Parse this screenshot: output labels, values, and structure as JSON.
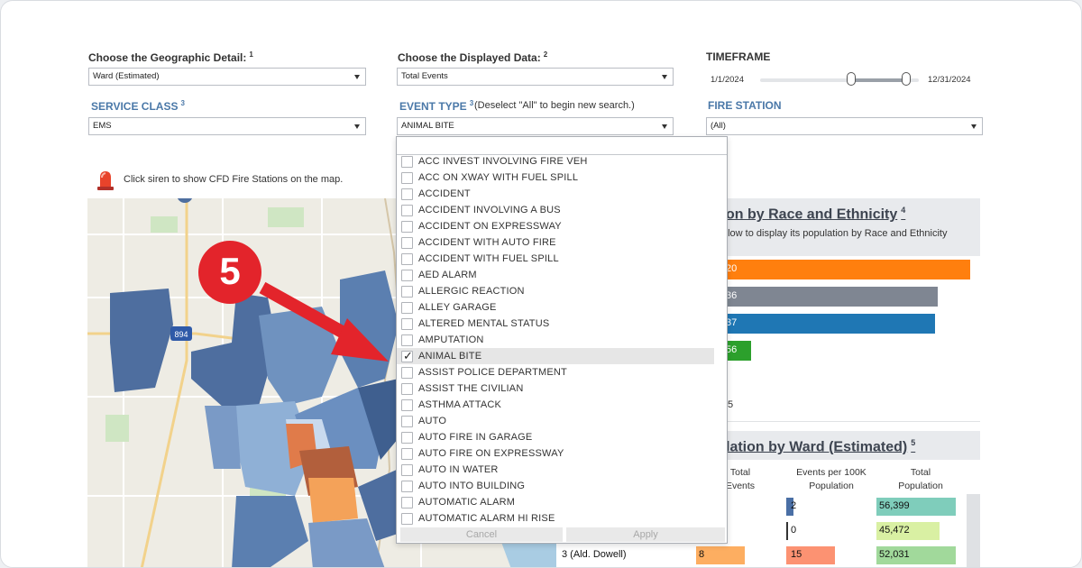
{
  "controls": {
    "geo_label": "Choose the Geographic Detail:",
    "geo_sup": "1",
    "geo_value": "Ward (Estimated)",
    "data_label": "Choose the Displayed Data:",
    "data_sup": "2",
    "data_value": "Total Events",
    "timeframe_label": "TIMEFRAME",
    "timeframe_start": "1/1/2024",
    "timeframe_end": "12/31/2024",
    "service_label": "SERVICE CLASS",
    "service_sup": "3",
    "service_value": "EMS",
    "event_label": "EVENT TYPE",
    "event_sup": "3",
    "event_note": "(Deselect \"All\" to begin new search.)",
    "event_value": "ANIMAL BITE",
    "station_label": "FIRE STATION",
    "station_value": "(All)"
  },
  "siren_text": "Click siren to show CFD Fire Stations on the map.",
  "map": {
    "shield": "894"
  },
  "race_panel": {
    "title": "on by Race and Ethnicity",
    "sup": "4",
    "subtitle": "elow to display its population by Race and Ethnicity",
    "bars": [
      {
        "label": "20",
        "fraction": 1.0,
        "color": "#ff7f0e"
      },
      {
        "label": "36",
        "fraction": 0.873,
        "color": "#7f8692"
      },
      {
        "label": "37",
        "fraction": 0.863,
        "color": "#1f77b4"
      },
      {
        "label": "56",
        "fraction": 0.147,
        "color": "#2ca02c"
      }
    ],
    "stray": "5"
  },
  "ward_panel": {
    "title": "lation by Ward (Estimated)",
    "sup": "5",
    "col_events": "Total\nEvents",
    "col_per100k": "Events per 100K\nPopulation",
    "col_population": "Total\nPopulation",
    "rows": [
      {
        "label": "",
        "events": "",
        "per100k": "2",
        "population": "56,399",
        "pop_color": "#7fcdbb",
        "rate_color": "#4a6fa5",
        "rate_fraction": 0.15
      },
      {
        "label": "",
        "events": "",
        "per100k": "0",
        "population": "45,472",
        "pop_color": "#d9f0a3",
        "rate_color": "#333333",
        "rate_fraction": 0.02
      },
      {
        "label": "3 (Ald. Dowell)",
        "events": "8",
        "per100k": "15",
        "population": "52,031",
        "pop_color": "#a1d99b",
        "rate_color": "#fc9272",
        "rate_fraction": 1.0,
        "events_color": "#fdae61"
      }
    ]
  },
  "dropdown": {
    "items": [
      {
        "label": "ACC INVEST INVOLVING FIRE VEH",
        "checked": false
      },
      {
        "label": "ACC ON XWAY WITH FUEL SPILL",
        "checked": false
      },
      {
        "label": "ACCIDENT",
        "checked": false
      },
      {
        "label": "ACCIDENT INVOLVING A BUS",
        "checked": false
      },
      {
        "label": "ACCIDENT ON EXPRESSWAY",
        "checked": false
      },
      {
        "label": "ACCIDENT WITH AUTO FIRE",
        "checked": false
      },
      {
        "label": "ACCIDENT WITH FUEL SPILL",
        "checked": false
      },
      {
        "label": "AED ALARM",
        "checked": false
      },
      {
        "label": "ALLERGIC REACTION",
        "checked": false
      },
      {
        "label": "ALLEY GARAGE",
        "checked": false
      },
      {
        "label": "ALTERED MENTAL STATUS",
        "checked": false
      },
      {
        "label": "AMPUTATION",
        "checked": false
      },
      {
        "label": "ANIMAL BITE",
        "checked": true
      },
      {
        "label": "ASSIST POLICE DEPARTMENT",
        "checked": false
      },
      {
        "label": "ASSIST THE CIVILIAN",
        "checked": false
      },
      {
        "label": "ASTHMA ATTACK",
        "checked": false
      },
      {
        "label": "AUTO",
        "checked": false
      },
      {
        "label": "AUTO FIRE IN GARAGE",
        "checked": false
      },
      {
        "label": "AUTO FIRE ON EXPRESSWAY",
        "checked": false
      },
      {
        "label": "AUTO IN WATER",
        "checked": false
      },
      {
        "label": "AUTO INTO BUILDING",
        "checked": false
      },
      {
        "label": "AUTOMATIC ALARM",
        "checked": false
      },
      {
        "label": "AUTOMATIC ALARM HI RISE",
        "checked": false
      }
    ],
    "cancel_label": "Cancel",
    "apply_label": "Apply"
  },
  "annotation": {
    "step": "5",
    "color": "#e3242b"
  }
}
